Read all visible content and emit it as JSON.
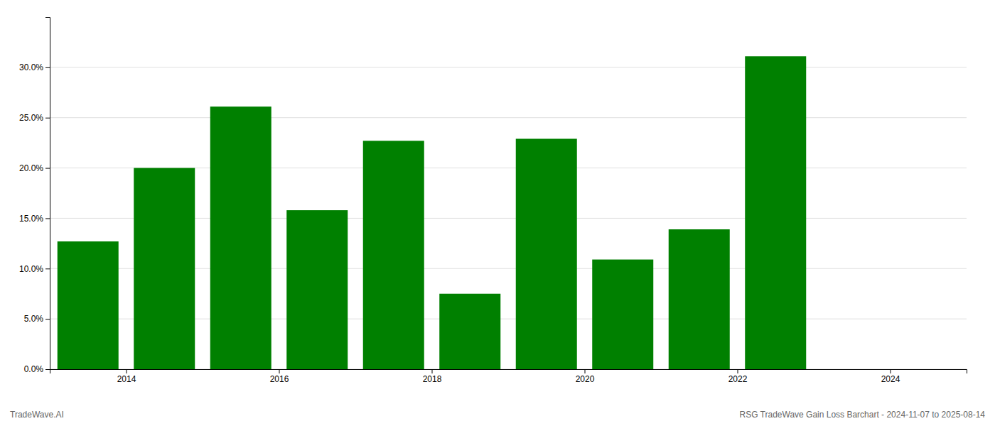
{
  "chart_data": {
    "type": "bar",
    "x": [
      2013.5,
      2014.5,
      2015.5,
      2016.5,
      2017.5,
      2018.5,
      2019.5,
      2020.5,
      2021.5,
      2022.5,
      2023.5
    ],
    "values": [
      0.127,
      0.2,
      0.261,
      0.158,
      0.227,
      0.075,
      0.229,
      0.109,
      0.139,
      0.311,
      null
    ],
    "color": "#008000",
    "xlim": [
      2013.0,
      2025.0
    ],
    "xticks": [
      2014,
      2016,
      2018,
      2020,
      2022,
      2024
    ],
    "ylim": [
      0.0,
      0.35
    ],
    "yticks": [
      {
        "value": 0.0,
        "label": "0.0%"
      },
      {
        "value": 0.05,
        "label": "5.0%"
      },
      {
        "value": 0.1,
        "label": "10.0%"
      },
      {
        "value": 0.15,
        "label": "15.0%"
      },
      {
        "value": 0.2,
        "label": "20.0%"
      },
      {
        "value": 0.25,
        "label": "25.0%"
      },
      {
        "value": 0.3,
        "label": "30.0%"
      }
    ],
    "grid": true,
    "annotations": [
      "TradeWave.AI",
      "RSG TradeWave Gain Loss Barchart - 2024-11-07 to 2025-08-14"
    ]
  }
}
